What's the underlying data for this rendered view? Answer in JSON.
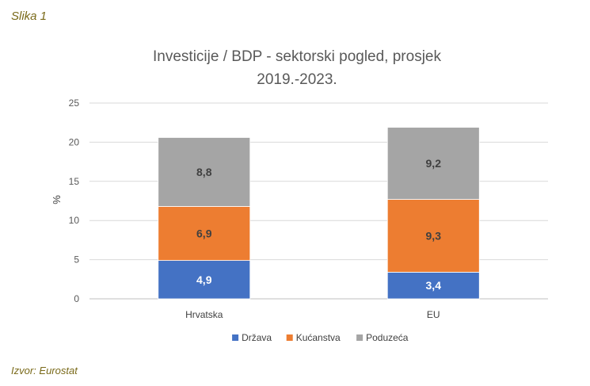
{
  "caption": "Slika 1",
  "source": "Izvor: Eurostat",
  "chart_data": {
    "type": "bar",
    "stacked": true,
    "title_lines": [
      "Investicije / BDP - sektorski pogled, prosjek",
      "2019.-2023."
    ],
    "ylabel": "%",
    "xlabel": "",
    "ylim": [
      0,
      25
    ],
    "yticks": [
      0,
      5,
      10,
      15,
      20,
      25
    ],
    "grid": true,
    "legend_position": "bottom",
    "categories": [
      "Hrvatska",
      "EU"
    ],
    "series": [
      {
        "name": "Država",
        "values": [
          4.9,
          3.4
        ],
        "labels": [
          "4,9",
          "3,4"
        ],
        "color": "#4472c4",
        "label_color": "#ffffff"
      },
      {
        "name": "Kućanstva",
        "values": [
          6.9,
          9.3
        ],
        "labels": [
          "6,9",
          "9,3"
        ],
        "color": "#ed7d31",
        "label_color": "#404040"
      },
      {
        "name": "Poduzeća",
        "values": [
          8.8,
          9.2
        ],
        "labels": [
          "8,8",
          "9,2"
        ],
        "color": "#a5a5a5",
        "label_color": "#404040"
      }
    ]
  }
}
